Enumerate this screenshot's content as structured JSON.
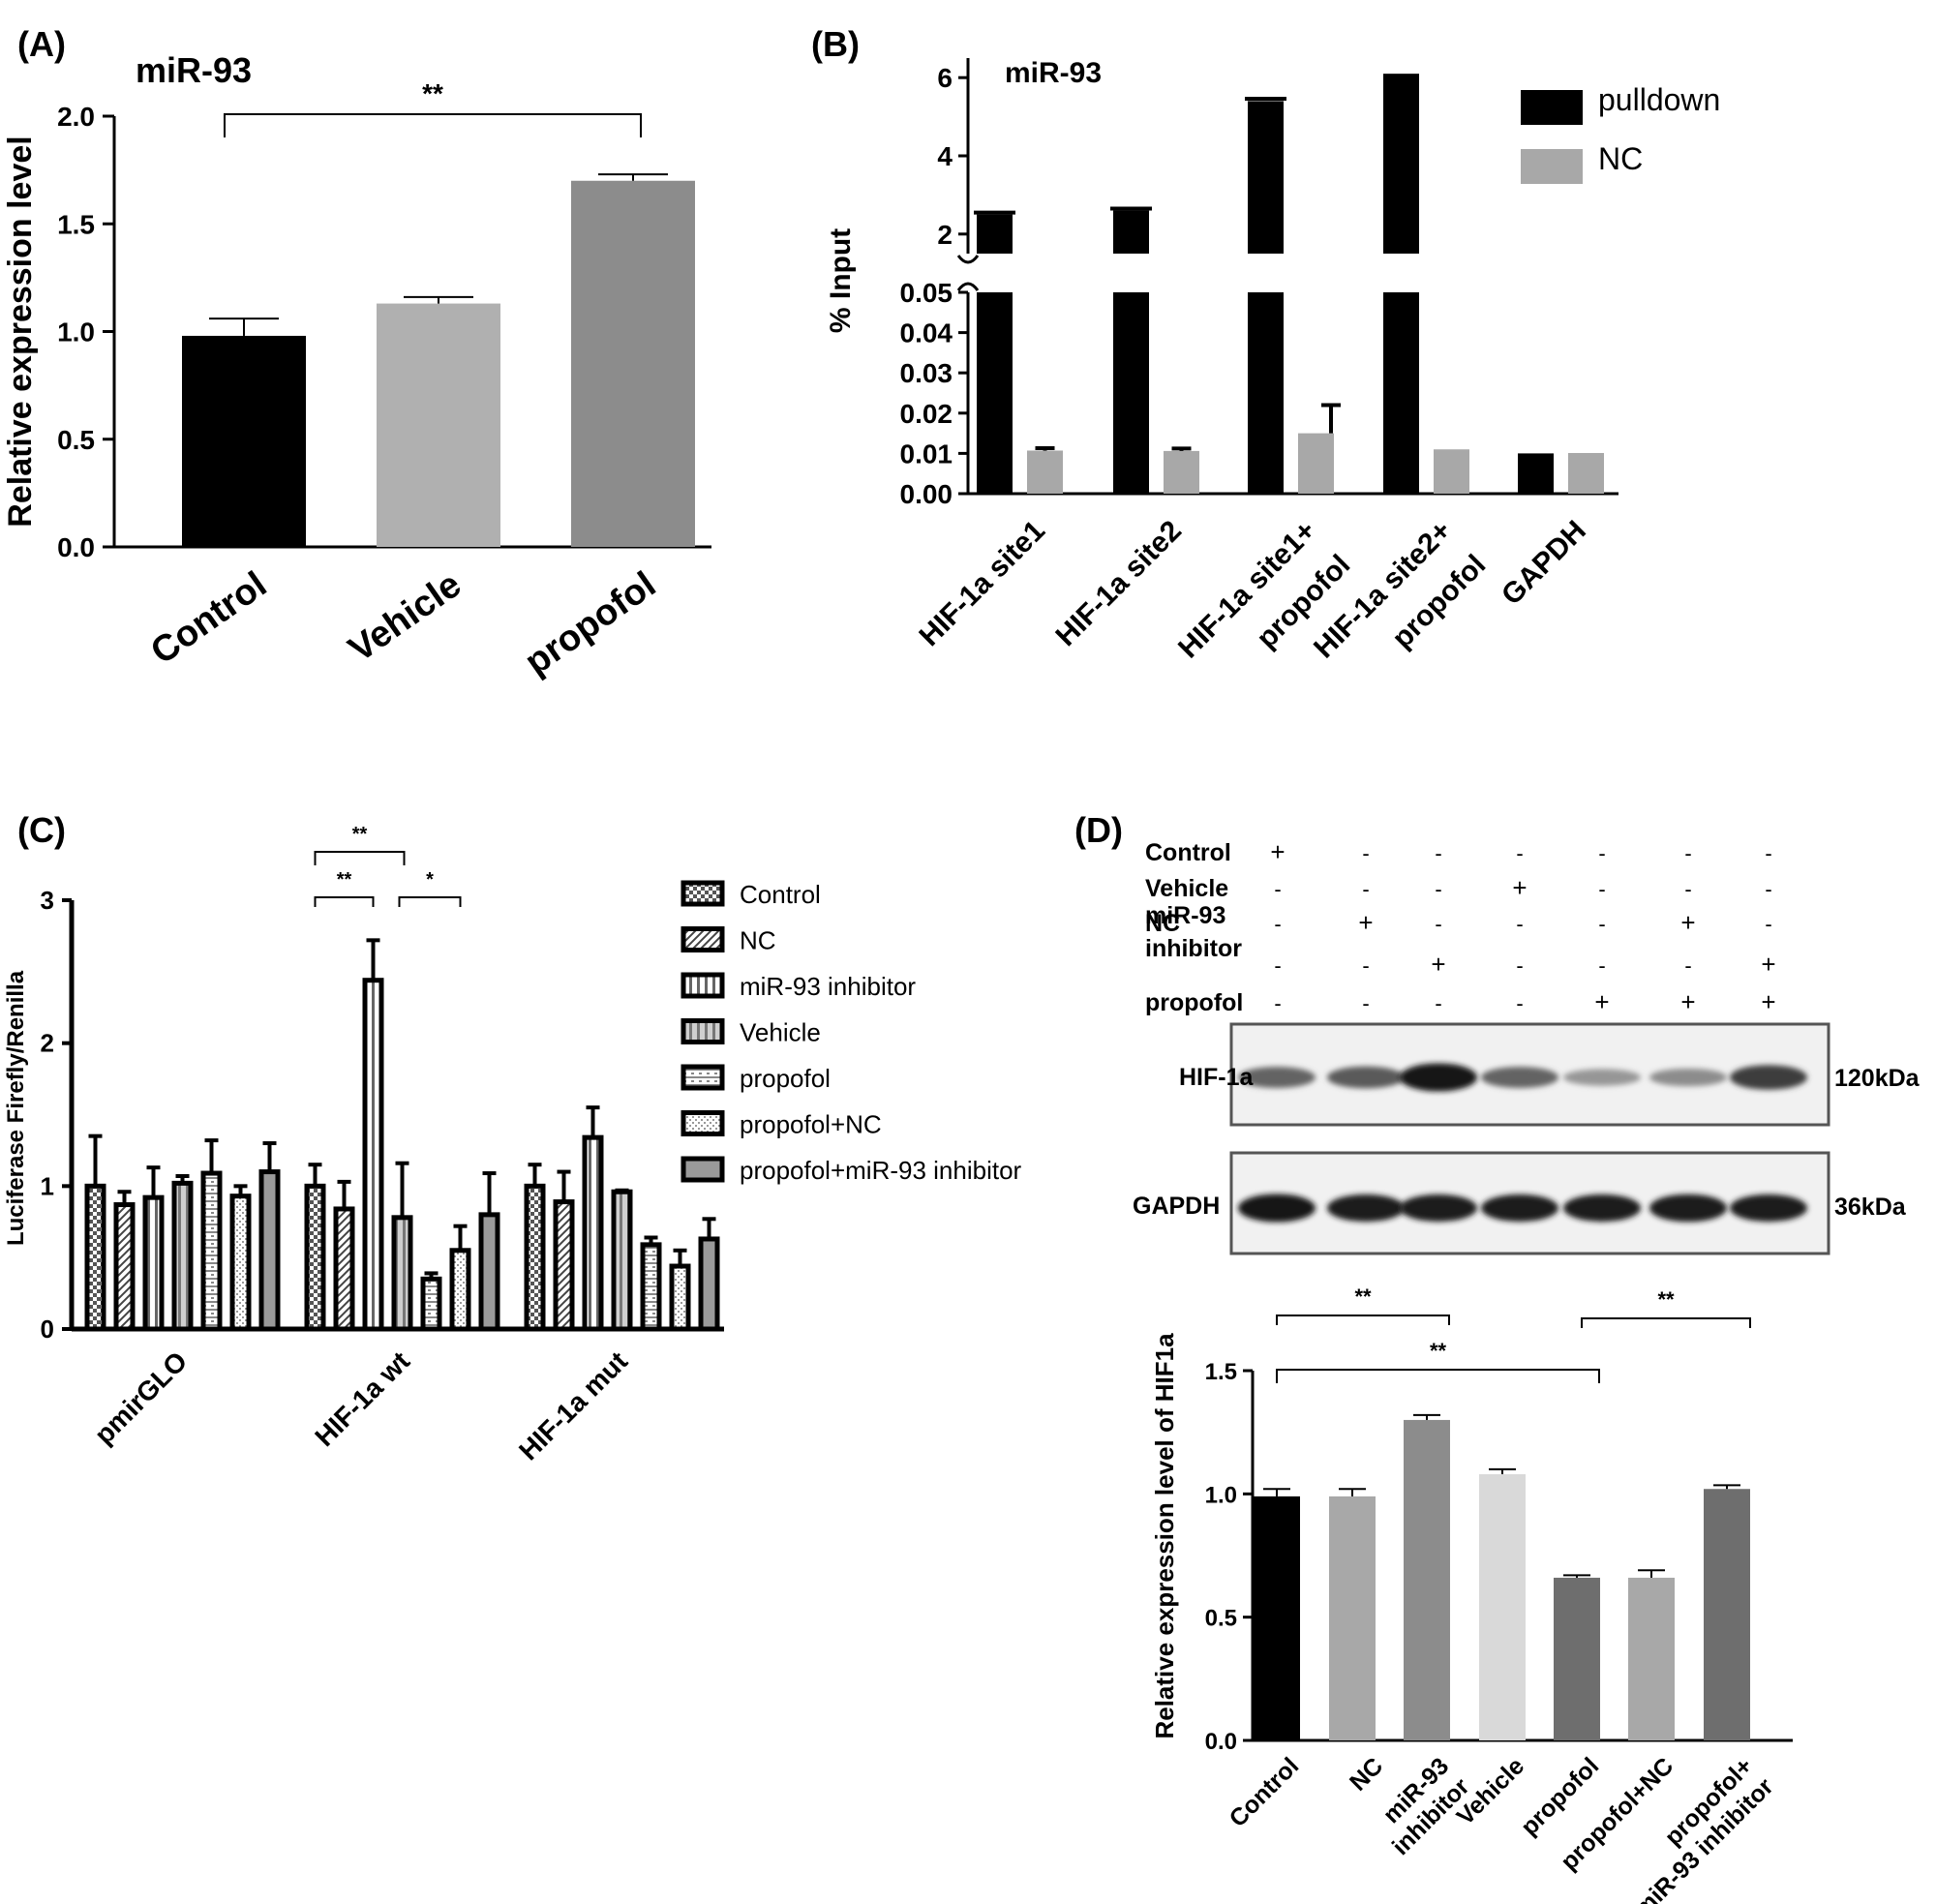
{
  "panels": {
    "A": {
      "letter": "(A)",
      "chart_data": {
        "type": "bar",
        "title": "miR-93",
        "ylabel": "Relative expression level",
        "ylim": [
          0,
          2.0
        ],
        "yticks": [
          "0.0",
          "0.5",
          "1.0",
          "1.5",
          "2.0"
        ],
        "categories": [
          "Control",
          "Vehicle",
          "propofol"
        ],
        "values": [
          0.98,
          1.13,
          1.7
        ],
        "errors": [
          0.08,
          0.03,
          0.03
        ],
        "colors": [
          "#000000",
          "#b0b0b0",
          "#8c8c8c"
        ],
        "significance": [
          {
            "from": 0,
            "to": 2,
            "label": "**"
          }
        ]
      }
    },
    "B": {
      "letter": "(B)",
      "chart_data": {
        "type": "bar",
        "title": "miR-93",
        "ylabel": "% Input",
        "y_axis_break": true,
        "lower_ylim": [
          0,
          0.05
        ],
        "lower_yticks": [
          "0.00",
          "0.01",
          "0.02",
          "0.03",
          "0.04",
          "0.05"
        ],
        "upper_ylim": [
          1.5,
          6.5
        ],
        "upper_yticks": [
          "2",
          "4",
          "6"
        ],
        "categories": [
          "HIF-1a site1",
          "HIF-1a site2",
          "HIF-1a site1+\npropofol",
          "HIF-1a site2+\npropofol",
          "GAPDH"
        ],
        "series": [
          {
            "name": "pulldown",
            "color": "#000000",
            "values": [
              2.5,
              2.6,
              5.4,
              6.1,
              0.01
            ],
            "errors": [
              0.05,
              0.05,
              0.06,
              0,
              0
            ]
          },
          {
            "name": "NC",
            "color": "#a8a8a8",
            "values": [
              0.0107,
              0.0106,
              0.015,
              0.011,
              0.0101
            ],
            "errors": [
              0.0006,
              0.0006,
              0.007,
              0,
              0
            ]
          }
        ],
        "legend": [
          "pulldown",
          "NC"
        ],
        "legend_position": "top-right"
      }
    },
    "C": {
      "letter": "(C)",
      "chart_data": {
        "type": "bar",
        "ylabel": "Luciferase Firefly/Renilla",
        "ylim": [
          0,
          3
        ],
        "yticks": [
          "0",
          "1",
          "2",
          "3"
        ],
        "categories": [
          "pmirGLO",
          "HIF-1a wt",
          "HIF-1a mut"
        ],
        "series": [
          {
            "name": "Control",
            "values": [
              1.0,
              1.0,
              1.0
            ],
            "errors": [
              0.35,
              0.15,
              0.15
            ]
          },
          {
            "name": "NC",
            "values": [
              0.87,
              0.84,
              0.89
            ],
            "errors": [
              0.09,
              0.19,
              0.21
            ]
          },
          {
            "name": "miR-93 inhibitor",
            "values": [
              0.92,
              2.44,
              1.34
            ],
            "errors": [
              0.21,
              0.28,
              0.21
            ]
          },
          {
            "name": "Vehicle",
            "values": [
              1.02,
              0.78,
              0.96
            ],
            "errors": [
              0.05,
              0.38,
              0.01
            ]
          },
          {
            "name": "propofol",
            "values": [
              1.09,
              0.35,
              0.59
            ],
            "errors": [
              0.23,
              0.04,
              0.05
            ]
          },
          {
            "name": "propofol+NC",
            "values": [
              0.93,
              0.55,
              0.44
            ],
            "errors": [
              0.07,
              0.17,
              0.11
            ]
          },
          {
            "name": "propofol+miR-93 inhibitor",
            "values": [
              1.1,
              0.8,
              0.63
            ],
            "errors": [
              0.2,
              0.29,
              0.14
            ]
          }
        ],
        "legend_position": "right",
        "significance": [
          {
            "label": "**",
            "from": "Control",
            "to": "Vehicle",
            "group": "HIF-1a wt"
          },
          {
            "label": "**",
            "from": "Control",
            "to": "miR-93 inhibitor",
            "group": "HIF-1a wt"
          },
          {
            "label": "*",
            "from": "Vehicle",
            "to": "propofol+NC",
            "group": "HIF-1a wt"
          }
        ]
      }
    },
    "D": {
      "letter": "(D)",
      "blot": {
        "row_labels": [
          "Control",
          "Vehicle",
          "NC",
          "miR-93\ninhibitor",
          "propofol"
        ],
        "signs": [
          [
            "+",
            "-",
            "-",
            "-",
            "-",
            "-",
            "-"
          ],
          [
            "-",
            "-",
            "-",
            "+",
            "-",
            "-",
            "-"
          ],
          [
            "-",
            "+",
            "-",
            "-",
            "-",
            "+",
            "-"
          ],
          [
            "-",
            "-",
            "+",
            "-",
            "-",
            "-",
            "+"
          ],
          [
            "-",
            "-",
            "-",
            "-",
            "+",
            "+",
            "+"
          ]
        ],
        "bands": [
          {
            "label": "HIF-1a",
            "size": "120kDa",
            "intensity": [
              0.55,
              0.6,
              0.95,
              0.55,
              0.3,
              0.35,
              0.75
            ]
          },
          {
            "label": "GAPDH",
            "size": "36kDa",
            "intensity": [
              0.95,
              0.9,
              0.9,
              0.9,
              0.9,
              0.92,
              0.9
            ]
          }
        ]
      },
      "chart_data": {
        "type": "bar",
        "ylabel": "Relative expression level of HIF1a",
        "ylim": [
          0,
          1.5
        ],
        "yticks": [
          "0.0",
          "0.5",
          "1.0",
          "1.5"
        ],
        "categories": [
          "Control",
          "NC",
          "miR-93\ninhibitor",
          "Vehicle",
          "propofol",
          "propofol+NC",
          "propofol+\nmiR-93 inhibitor"
        ],
        "values": [
          0.99,
          0.99,
          1.3,
          1.08,
          0.66,
          0.66,
          1.02
        ],
        "errors": [
          0.03,
          0.03,
          0.02,
          0.02,
          0.01,
          0.03,
          0.015
        ],
        "colors": [
          "#000000",
          "#a8a8a8",
          "#8c8c8c",
          "#d9d9d9",
          "#6e6e6e",
          "#a8a8a8",
          "#6e6e6e"
        ],
        "significance": [
          {
            "from": 0,
            "to": 2,
            "label": "**"
          },
          {
            "from": 4,
            "to": 6,
            "label": "**"
          },
          {
            "from": 0,
            "to": 4,
            "label": "**"
          }
        ]
      }
    }
  }
}
